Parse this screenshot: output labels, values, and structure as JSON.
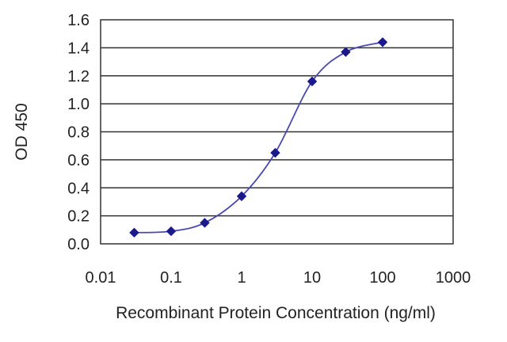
{
  "chart_data": {
    "type": "line",
    "title": "",
    "xlabel": "Recombinant Protein Concentration (ng/ml)",
    "ylabel": "OD 450",
    "xscale": "log",
    "xlim": [
      0.01,
      1000
    ],
    "ylim": [
      0.0,
      1.6
    ],
    "x_ticks": [
      "0.01",
      "0.1",
      "1",
      "10",
      "100",
      "1000"
    ],
    "y_ticks": [
      "0.0",
      "0.2",
      "0.4",
      "0.6",
      "0.8",
      "1.0",
      "1.2",
      "1.4",
      "1.6"
    ],
    "grid": "horizontal",
    "series": [
      {
        "x": [
          0.03,
          0.1,
          0.3,
          1,
          3,
          10,
          30,
          100
        ],
        "y": [
          0.08,
          0.09,
          0.15,
          0.34,
          0.65,
          1.16,
          1.37,
          1.44
        ],
        "color": "#1a1a8c",
        "marker": "diamond"
      }
    ]
  }
}
